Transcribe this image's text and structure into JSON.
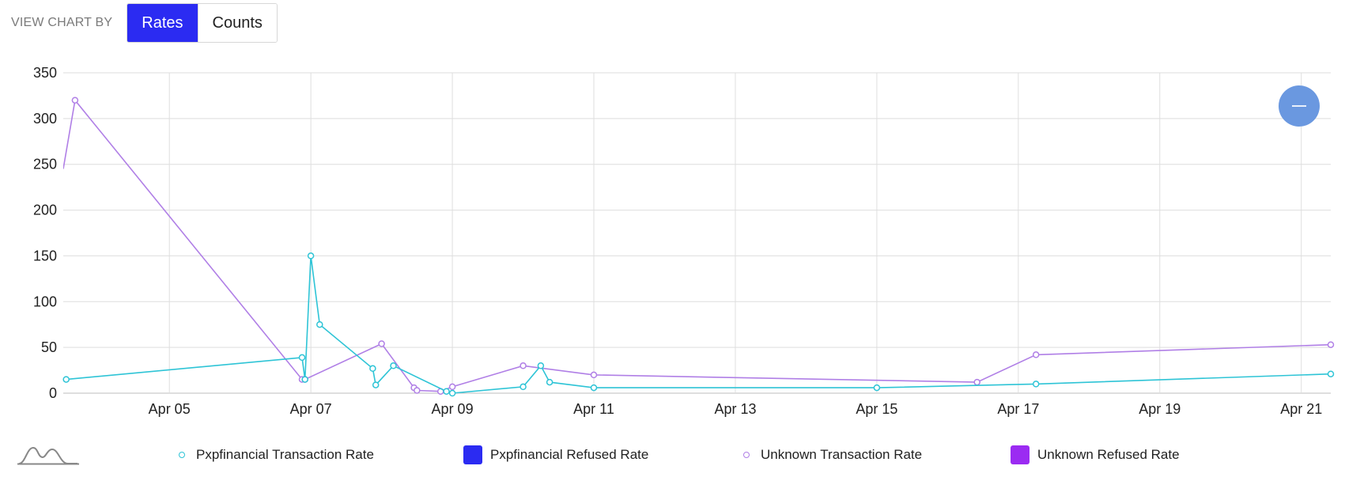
{
  "toolbar": {
    "label": "VIEW CHART BY",
    "options": [
      "Rates",
      "Counts"
    ],
    "selected": "Rates"
  },
  "colors": {
    "accent": "#2b2bf2",
    "pxp_transaction": "#2ec4d6",
    "pxp_refused": "#2b2bf2",
    "unknown_transaction": "#b07fe6",
    "unknown_refused": "#9b2bf2",
    "zoom_button": "#6a98e0"
  },
  "icons": {
    "zoom": "minus-icon",
    "navigator": "navigator-wave-icon"
  },
  "chart_data": {
    "type": "line",
    "title": "",
    "xlabel": "",
    "ylabel": "",
    "ylim": [
      0,
      350
    ],
    "xlim": [
      "2024-04-04T00:00",
      "2024-04-21T22:00"
    ],
    "yticks": [
      0,
      50,
      100,
      150,
      200,
      250,
      300,
      350
    ],
    "xticks": [
      "Apr 05",
      "Apr 07",
      "Apr 09",
      "Apr 11",
      "Apr 13",
      "Apr 15",
      "Apr 17",
      "Apr 19",
      "Apr 21"
    ],
    "grid": true,
    "legend_position": "bottom",
    "series": [
      {
        "name": "Pxpfinancial Transaction Rate",
        "color": "#2ec4d6",
        "marker": "hollow-circle",
        "points": [
          [
            "2024-04-04T01:00",
            15
          ],
          [
            "2024-04-07T09:00",
            39
          ],
          [
            "2024-04-07T10:00",
            15
          ],
          [
            "2024-04-07T12:00",
            150
          ],
          [
            "2024-04-07T15:00",
            75
          ],
          [
            "2024-04-08T09:00",
            27
          ],
          [
            "2024-04-08T10:00",
            9
          ],
          [
            "2024-04-08T16:00",
            30
          ],
          [
            "2024-04-09T10:00",
            2
          ],
          [
            "2024-04-09T12:00",
            0
          ],
          [
            "2024-04-10T12:00",
            7
          ],
          [
            "2024-04-10T18:00",
            30
          ],
          [
            "2024-04-10T21:00",
            12
          ],
          [
            "2024-04-11T12:00",
            6
          ],
          [
            "2024-04-15T12:00",
            6
          ],
          [
            "2024-04-17T18:00",
            10
          ],
          [
            "2024-04-21T22:00",
            21
          ]
        ]
      },
      {
        "name": "Pxpfinancial  Refused Rate",
        "color": "#2b2bf2",
        "marker": "square",
        "points": []
      },
      {
        "name": "Unknown Transaction Rate",
        "color": "#b07fe6",
        "marker": "hollow-circle",
        "points": [
          [
            "2024-04-04T00:00",
            245
          ],
          [
            "2024-04-04T04:00",
            320
          ],
          [
            "2024-04-07T09:00",
            15
          ],
          [
            "2024-04-07T10:00",
            15
          ],
          [
            "2024-04-08T12:00",
            54
          ],
          [
            "2024-04-08T23:00",
            6
          ],
          [
            "2024-04-09T00:00",
            3
          ],
          [
            "2024-04-09T08:00",
            2
          ],
          [
            "2024-04-09T12:00",
            7
          ],
          [
            "2024-04-10T12:00",
            30
          ],
          [
            "2024-04-11T12:00",
            20
          ],
          [
            "2024-04-16T22:00",
            12
          ],
          [
            "2024-04-17T18:00",
            42
          ],
          [
            "2024-04-21T22:00",
            53
          ]
        ]
      },
      {
        "name": "Unknown  Refused Rate",
        "color": "#9b2bf2",
        "marker": "square",
        "points": []
      }
    ]
  }
}
